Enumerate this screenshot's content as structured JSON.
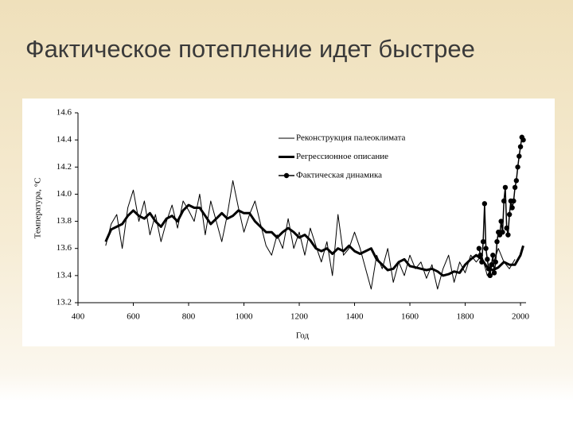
{
  "slide_title": "Фактическое потепление идет быстрее",
  "chart_data": {
    "type": "line",
    "xlabel": "Год",
    "ylabel": "Температура, °С",
    "xlim": [
      400,
      2020
    ],
    "xticks": [
      400,
      600,
      800,
      1000,
      1200,
      1400,
      1600,
      1800,
      2000
    ],
    "ylim": [
      13.2,
      14.6
    ],
    "yticks": [
      13.2,
      13.4,
      13.6,
      13.8,
      {
        "value": 14,
        "label": "14.0"
      },
      14.2,
      14.4,
      14.6
    ],
    "series": [
      {
        "name": "Реконструкция палеоклимата",
        "color": "#000000",
        "line_width": 1,
        "marker": false,
        "x": [
          500,
          520,
          540,
          560,
          580,
          600,
          620,
          640,
          660,
          680,
          700,
          720,
          740,
          760,
          780,
          800,
          820,
          840,
          860,
          880,
          900,
          920,
          940,
          960,
          980,
          1000,
          1020,
          1040,
          1060,
          1080,
          1100,
          1120,
          1140,
          1160,
          1180,
          1200,
          1220,
          1240,
          1260,
          1280,
          1300,
          1320,
          1340,
          1360,
          1380,
          1400,
          1420,
          1440,
          1460,
          1480,
          1500,
          1520,
          1540,
          1560,
          1580,
          1600,
          1620,
          1640,
          1660,
          1680,
          1700,
          1720,
          1740,
          1760,
          1780,
          1800,
          1820,
          1840,
          1860,
          1880,
          1900,
          1920,
          1940,
          1960,
          1980
        ],
        "values": [
          13.62,
          13.78,
          13.85,
          13.6,
          13.9,
          14.03,
          13.8,
          13.95,
          13.7,
          13.85,
          13.65,
          13.8,
          13.92,
          13.75,
          13.95,
          13.88,
          13.8,
          14.0,
          13.7,
          13.95,
          13.8,
          13.65,
          13.85,
          14.1,
          13.9,
          13.72,
          13.85,
          13.95,
          13.78,
          13.62,
          13.55,
          13.7,
          13.6,
          13.82,
          13.6,
          13.72,
          13.55,
          13.75,
          13.62,
          13.5,
          13.65,
          13.4,
          13.85,
          13.55,
          13.6,
          13.72,
          13.6,
          13.45,
          13.3,
          13.55,
          13.45,
          13.6,
          13.35,
          13.5,
          13.4,
          13.55,
          13.45,
          13.5,
          13.38,
          13.48,
          13.3,
          13.45,
          13.55,
          13.35,
          13.5,
          13.42,
          13.55,
          13.5,
          13.55,
          13.4,
          13.48,
          13.6,
          13.5,
          13.45,
          13.52
        ]
      },
      {
        "name": "Регрессионное описание",
        "color": "#000000",
        "line_width": 3,
        "marker": false,
        "x": [
          500,
          520,
          540,
          560,
          580,
          600,
          620,
          640,
          660,
          680,
          700,
          720,
          740,
          760,
          780,
          800,
          820,
          840,
          860,
          880,
          900,
          920,
          940,
          960,
          980,
          1000,
          1020,
          1040,
          1060,
          1080,
          1100,
          1120,
          1140,
          1160,
          1180,
          1200,
          1220,
          1240,
          1260,
          1280,
          1300,
          1320,
          1340,
          1360,
          1380,
          1400,
          1420,
          1440,
          1460,
          1480,
          1500,
          1520,
          1540,
          1560,
          1580,
          1600,
          1620,
          1640,
          1660,
          1680,
          1700,
          1720,
          1740,
          1760,
          1780,
          1800,
          1820,
          1840,
          1860,
          1880,
          1900,
          1920,
          1940,
          1960,
          1980,
          2000,
          2010
        ],
        "values": [
          13.65,
          13.74,
          13.76,
          13.78,
          13.84,
          13.88,
          13.84,
          13.82,
          13.86,
          13.8,
          13.76,
          13.82,
          13.84,
          13.8,
          13.88,
          13.92,
          13.9,
          13.9,
          13.84,
          13.78,
          13.82,
          13.86,
          13.82,
          13.84,
          13.88,
          13.86,
          13.86,
          13.8,
          13.76,
          13.72,
          13.72,
          13.68,
          13.72,
          13.75,
          13.72,
          13.68,
          13.7,
          13.66,
          13.6,
          13.58,
          13.6,
          13.56,
          13.6,
          13.58,
          13.62,
          13.58,
          13.56,
          13.58,
          13.6,
          13.52,
          13.48,
          13.44,
          13.45,
          13.5,
          13.52,
          13.47,
          13.46,
          13.45,
          13.44,
          13.45,
          13.43,
          13.4,
          13.41,
          13.43,
          13.42,
          13.48,
          13.52,
          13.55,
          13.52,
          13.46,
          13.44,
          13.46,
          13.5,
          13.48,
          13.48,
          13.55,
          13.62
        ]
      },
      {
        "name": "Фактическая динамика",
        "color": "#000000",
        "line_width": 1.5,
        "marker": true,
        "x": [
          1850,
          1855,
          1860,
          1865,
          1870,
          1875,
          1880,
          1885,
          1890,
          1895,
          1900,
          1905,
          1910,
          1915,
          1920,
          1925,
          1930,
          1935,
          1940,
          1945,
          1950,
          1955,
          1960,
          1965,
          1970,
          1975,
          1980,
          1985,
          1990,
          1995,
          2000,
          2005,
          2010
        ],
        "values": [
          13.6,
          13.55,
          13.5,
          13.65,
          13.93,
          13.6,
          13.52,
          13.45,
          13.4,
          13.48,
          13.55,
          13.42,
          13.5,
          13.65,
          13.72,
          13.7,
          13.8,
          13.72,
          13.95,
          14.05,
          13.75,
          13.7,
          13.85,
          13.95,
          13.9,
          13.95,
          14.05,
          14.1,
          14.2,
          14.28,
          14.35,
          14.42,
          14.4
        ]
      }
    ]
  }
}
